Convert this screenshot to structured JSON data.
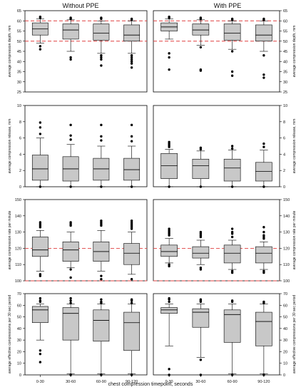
{
  "titles": {
    "left": "Without PPE",
    "right": "With PPE"
  },
  "xlabel": "chest compression timepoint, seconds",
  "categories": [
    "0-30",
    "30-60",
    "60-90",
    "90-120"
  ],
  "colors": {
    "box": "#c8c8c8",
    "ref_line": "#e04040",
    "axis": "#000000"
  },
  "chart_data": [
    {
      "type": "box",
      "ylabel": "average compression depth, mm",
      "ylim": [
        25,
        65
      ],
      "ticks": [
        25,
        30,
        35,
        40,
        45,
        50,
        55,
        60,
        65
      ],
      "ref_lines": [
        50,
        60
      ],
      "panels": [
        {
          "group": "Without PPE",
          "boxes": [
            {
              "category": "0-30",
              "whislo": 49,
              "q1": 53,
              "med": 56,
              "q3": 59,
              "whishi": 61,
              "fliers": [
                46,
                47.5,
                61.5,
                62
              ]
            },
            {
              "category": "30-60",
              "whislo": 45,
              "q1": 51,
              "med": 55.5,
              "q3": 58.5,
              "whishi": 60.5,
              "fliers": [
                41,
                42,
                61,
                61.5
              ]
            },
            {
              "category": "60-90",
              "whislo": 44,
              "q1": 50.5,
              "med": 54,
              "q3": 58.5,
              "whishi": 60,
              "fliers": [
                38,
                41,
                42,
                43,
                61,
                61.5
              ]
            },
            {
              "category": "90-120",
              "whislo": 44,
              "q1": 50,
              "med": 53,
              "q3": 58,
              "whishi": 60,
              "fliers": [
                37,
                39,
                40,
                41,
                42,
                43,
                60.5,
                61
              ]
            }
          ]
        },
        {
          "group": "With PPE",
          "boxes": [
            {
              "category": "0-30",
              "whislo": 51,
              "q1": 55,
              "med": 57,
              "q3": 59,
              "whishi": 61,
              "fliers": [
                36,
                42,
                44,
                61.5,
                62
              ]
            },
            {
              "category": "30-60",
              "whislo": 48,
              "q1": 53,
              "med": 55.5,
              "q3": 58.5,
              "whishi": 60.5,
              "fliers": [
                35.5,
                36,
                47,
                61,
                61.5
              ]
            },
            {
              "category": "60-90",
              "whislo": 46,
              "q1": 50.5,
              "med": 54,
              "q3": 58.5,
              "whishi": 60,
              "fliers": [
                33,
                35,
                45,
                60.5,
                61
              ]
            },
            {
              "category": "90-120",
              "whislo": 45,
              "q1": 50,
              "med": 53,
              "q3": 58,
              "whishi": 60,
              "fliers": [
                32,
                33.5,
                43,
                60.5,
                61
              ]
            }
          ]
        }
      ]
    },
    {
      "type": "box",
      "ylabel": "average compression release, mm",
      "ylim": [
        0,
        10
      ],
      "ticks": [
        0,
        2,
        4,
        6,
        8,
        10
      ],
      "ref_lines": [],
      "panels": [
        {
          "group": "Without PPE",
          "boxes": [
            {
              "category": "0-30",
              "whislo": 0,
              "q1": 0.8,
              "med": 2.2,
              "q3": 3.9,
              "whishi": 6,
              "fliers": [
                0,
                6.5,
                7.3,
                7.9
              ]
            },
            {
              "category": "30-60",
              "whislo": 0,
              "q1": 0.7,
              "med": 2.2,
              "q3": 3.7,
              "whishi": 5.2,
              "fliers": [
                0,
                5.8,
                6.3,
                7.6
              ]
            },
            {
              "category": "60-90",
              "whislo": 0,
              "q1": 0.8,
              "med": 2.2,
              "q3": 3.5,
              "whishi": 5,
              "fliers": [
                0,
                5.7,
                6.2,
                7.6
              ]
            },
            {
              "category": "90-120",
              "whislo": 0,
              "q1": 0.8,
              "med": 2.1,
              "q3": 3.5,
              "whishi": 5,
              "fliers": [
                0,
                5.6,
                6.2,
                7.6
              ]
            }
          ]
        },
        {
          "group": "With PPE",
          "boxes": [
            {
              "category": "0-30",
              "whislo": 0,
              "q1": 1,
              "med": 2.6,
              "q3": 4.1,
              "whishi": 4.6,
              "fliers": [
                0,
                4.9,
                5.1,
                5.3,
                5.5
              ]
            },
            {
              "category": "30-60",
              "whislo": 0,
              "q1": 1,
              "med": 2.6,
              "q3": 3.4,
              "whishi": 4.4,
              "fliers": [
                0,
                4.6,
                4.8
              ]
            },
            {
              "category": "60-90",
              "whislo": 0,
              "q1": 0.7,
              "med": 2.3,
              "q3": 3.4,
              "whishi": 4.5,
              "fliers": [
                0,
                4.7,
                5
              ]
            },
            {
              "category": "90-120",
              "whislo": 0,
              "q1": 0.7,
              "med": 1.9,
              "q3": 3,
              "whishi": 4.5,
              "fliers": [
                0,
                4.9,
                5.3
              ]
            }
          ]
        }
      ]
    },
    {
      "type": "box",
      "ylabel": "average compression rate per minute",
      "ylim": [
        100,
        150
      ],
      "ticks": [
        100,
        110,
        120,
        130,
        140,
        150
      ],
      "ref_lines": [
        100,
        120
      ],
      "panels": [
        {
          "group": "Without PPE",
          "boxes": [
            {
              "category": "0-30",
              "whislo": 106,
              "q1": 115,
              "med": 119,
              "q3": 127,
              "whishi": 131,
              "fliers": [
                103,
                104,
                133,
                134,
                135,
                136
              ]
            },
            {
              "category": "30-60",
              "whislo": 108,
              "q1": 112,
              "med": 119,
              "q3": 124,
              "whishi": 130,
              "fliers": [
                102,
                107,
                134,
                135,
                136
              ]
            },
            {
              "category": "60-90",
              "whislo": 106,
              "q1": 112,
              "med": 118,
              "q3": 124,
              "whishi": 131,
              "fliers": [
                101,
                103,
                134,
                135,
                136,
                137
              ]
            },
            {
              "category": "90-120",
              "whislo": 104,
              "q1": 110,
              "med": 117,
              "q3": 123,
              "whishi": 130,
              "fliers": [
                101,
                132,
                133,
                134,
                135,
                136,
                137
              ]
            }
          ]
        },
        {
          "group": "With PPE",
          "boxes": [
            {
              "category": "0-30",
              "whislo": 111,
              "q1": 115,
              "med": 118,
              "q3": 122,
              "whishi": 126,
              "fliers": [
                109,
                110,
                128,
                129,
                130,
                131,
                132
              ]
            },
            {
              "category": "30-60",
              "whislo": 110,
              "q1": 114,
              "med": 117,
              "q3": 121,
              "whishi": 125,
              "fliers": [
                107,
                108,
                127,
                128,
                129,
                130
              ]
            },
            {
              "category": "60-90",
              "whislo": 107,
              "q1": 111,
              "med": 117,
              "q3": 122,
              "whishi": 125,
              "fliers": [
                105,
                106,
                127,
                129,
                130,
                132
              ]
            },
            {
              "category": "90-120",
              "whislo": 107,
              "q1": 111,
              "med": 117,
              "q3": 121,
              "whishi": 124,
              "fliers": [
                105,
                106,
                126,
                127,
                128,
                130,
                133
              ]
            }
          ]
        }
      ]
    },
    {
      "type": "box",
      "ylabel": "average effective compressions per 30 sec period",
      "ylim": [
        0,
        70
      ],
      "ticks": [
        0,
        10,
        20,
        30,
        40,
        50,
        60,
        70
      ],
      "ref_lines": [],
      "panels": [
        {
          "group": "Without PPE",
          "boxes": [
            {
              "category": "0-30",
              "whislo": 30,
              "q1": 45,
              "med": 56,
              "q3": 59,
              "whishi": 61,
              "fliers": [
                11,
                18,
                21,
                63,
                64,
                66
              ]
            },
            {
              "category": "30-60",
              "whislo": 1,
              "q1": 30,
              "med": 53,
              "q3": 58,
              "whishi": 61,
              "fliers": [
                0,
                62,
                64,
                66
              ]
            },
            {
              "category": "60-90",
              "whislo": 1,
              "q1": 29,
              "med": 47,
              "q3": 56,
              "whishi": 61,
              "fliers": [
                0,
                62,
                63,
                65
              ]
            },
            {
              "category": "90-120",
              "whislo": 1,
              "q1": 21,
              "med": 45,
              "q3": 54,
              "whishi": 61,
              "fliers": [
                0,
                62,
                64,
                65
              ]
            }
          ]
        },
        {
          "group": "With PPE",
          "boxes": [
            {
              "category": "0-30",
              "whislo": 25,
              "q1": 53,
              "med": 56,
              "q3": 58,
              "whishi": 61,
              "fliers": [
                0,
                5,
                63,
                65,
                66
              ]
            },
            {
              "category": "30-60",
              "whislo": 15,
              "q1": 41,
              "med": 54,
              "q3": 57,
              "whishi": 61,
              "fliers": [
                0,
                13,
                63,
                64,
                65
              ]
            },
            {
              "category": "60-90",
              "whislo": 1,
              "q1": 28,
              "med": 52,
              "q3": 56,
              "whishi": 61,
              "fliers": [
                0,
                63,
                64
              ]
            },
            {
              "category": "90-120",
              "whislo": 1,
              "q1": 25,
              "med": 46,
              "q3": 54,
              "whishi": 61,
              "fliers": [
                0,
                62,
                63
              ]
            }
          ]
        }
      ]
    }
  ]
}
